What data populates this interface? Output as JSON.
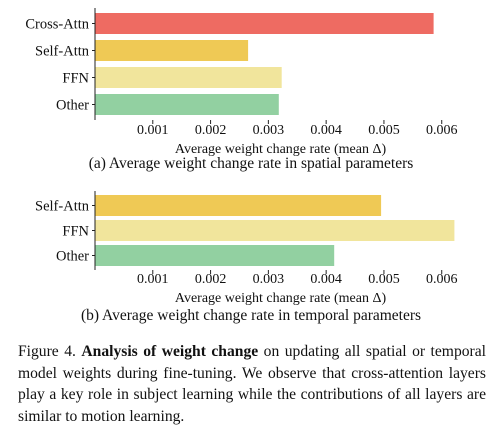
{
  "chart_data": [
    {
      "type": "bar",
      "orientation": "horizontal",
      "categories": [
        "Cross-Attn",
        "Self-Attn",
        "FFN",
        "Other"
      ],
      "values": [
        0.00586,
        0.00265,
        0.00323,
        0.00318
      ],
      "colors": [
        "#ee6b62",
        "#efc955",
        "#f1e59c",
        "#92d0a1"
      ],
      "xlabel": "Average weight change rate (mean Δ)",
      "xticks": [
        "0.001",
        "0.002",
        "0.003",
        "0.004",
        "0.005",
        "0.006"
      ],
      "xtick_values": [
        0.001,
        0.002,
        0.003,
        0.004,
        0.005,
        0.006
      ],
      "xlim": [
        0,
        0.00642
      ],
      "grid": false
    },
    {
      "type": "bar",
      "orientation": "horizontal",
      "categories": [
        "Self-Attn",
        "FFN",
        "Other"
      ],
      "values": [
        0.00495,
        0.00622,
        0.00414
      ],
      "colors": [
        "#efc955",
        "#f1e59c",
        "#92d0a1"
      ],
      "xlabel": "Average weight change rate (mean Δ)",
      "xticks": [
        "0.001",
        "0.002",
        "0.003",
        "0.004",
        "0.005",
        "0.006"
      ],
      "xtick_values": [
        0.001,
        0.002,
        0.003,
        0.004,
        0.005,
        0.006
      ],
      "xlim": [
        0,
        0.00642
      ],
      "grid": false
    }
  ],
  "captions": {
    "a": "(a) Average weight change rate in spatial parameters",
    "b": "(b) Average weight change rate in temporal parameters"
  },
  "figure_caption": {
    "label": "Figure 4.",
    "bold": "Analysis of weight change",
    "rest": "on updating all spatial or temporal model weights during fine-tuning. We observe that cross-attention layers play a key role in subject learning while the contributions of all layers are similar to motion learning."
  }
}
